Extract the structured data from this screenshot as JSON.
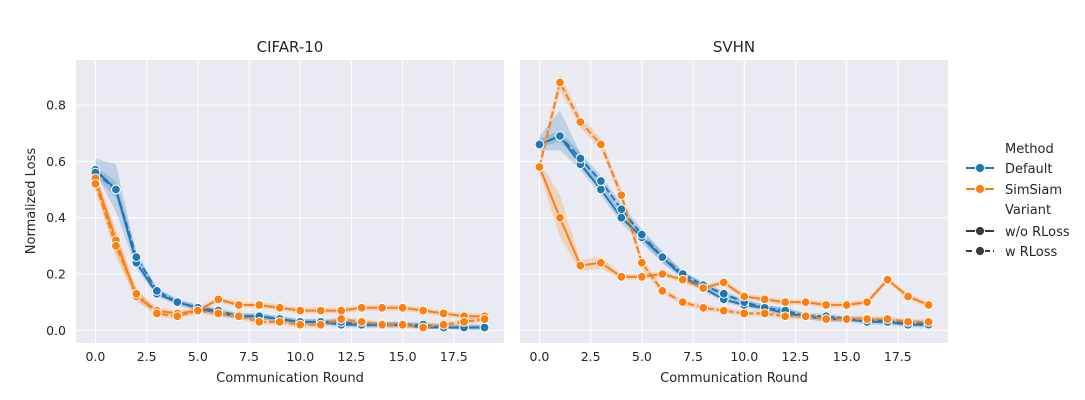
{
  "chart_data": [
    {
      "type": "line",
      "title": "CIFAR-10",
      "xlabel": "Communication Round",
      "ylabel": "Normalized Loss",
      "xlim": [
        -0.95,
        19.95
      ],
      "ylim": [
        -0.045,
        0.96
      ],
      "xticks": [
        "0.0",
        "2.5",
        "5.0",
        "7.5",
        "10.0",
        "12.5",
        "15.0",
        "17.5"
      ],
      "yticks": [
        "0.0",
        "0.2",
        "0.4",
        "0.6",
        "0.8"
      ],
      "grid": true,
      "series": [
        {
          "name": "Default",
          "variant": "w/o RLoss",
          "values": [
            0.57,
            0.5,
            0.24,
            0.13,
            0.1,
            0.08,
            0.06,
            0.05,
            0.05,
            0.04,
            0.03,
            0.03,
            0.02,
            0.02,
            0.02,
            0.02,
            0.01,
            0.01,
            0.01,
            0.01
          ],
          "band": [
            [
              0.56,
              0.61
            ],
            [
              0.42,
              0.59
            ],
            [
              0.22,
              0.27
            ],
            [
              0.12,
              0.15
            ],
            [
              0.09,
              0.11
            ],
            [
              0.07,
              0.09
            ],
            [
              0.05,
              0.07
            ],
            [
              0.04,
              0.06
            ],
            [
              0.04,
              0.06
            ],
            [
              0.03,
              0.05
            ],
            [
              0.02,
              0.04
            ],
            [
              0.02,
              0.04
            ],
            [
              0.01,
              0.03
            ],
            [
              0.01,
              0.03
            ],
            [
              0.01,
              0.03
            ],
            [
              0.01,
              0.03
            ],
            [
              0.005,
              0.02
            ],
            [
              0.005,
              0.02
            ],
            [
              0.0,
              0.02
            ],
            [
              0.0,
              0.02
            ]
          ]
        },
        {
          "name": "Default",
          "variant": "w RLoss",
          "values": [
            0.56,
            0.5,
            0.26,
            0.14,
            0.1,
            0.08,
            0.07,
            0.05,
            0.05,
            0.04,
            0.03,
            0.03,
            0.03,
            0.02,
            0.02,
            0.02,
            0.02,
            0.01,
            0.01,
            0.01
          ],
          "band": [
            [
              0.55,
              0.58
            ],
            [
              0.47,
              0.53
            ],
            [
              0.25,
              0.28
            ],
            [
              0.13,
              0.15
            ],
            [
              0.09,
              0.11
            ],
            [
              0.07,
              0.09
            ],
            [
              0.06,
              0.08
            ],
            [
              0.04,
              0.06
            ],
            [
              0.04,
              0.06
            ],
            [
              0.03,
              0.05
            ],
            [
              0.02,
              0.04
            ],
            [
              0.02,
              0.04
            ],
            [
              0.02,
              0.04
            ],
            [
              0.01,
              0.03
            ],
            [
              0.01,
              0.03
            ],
            [
              0.01,
              0.03
            ],
            [
              0.01,
              0.03
            ],
            [
              0.005,
              0.02
            ],
            [
              0.005,
              0.02
            ],
            [
              0.005,
              0.02
            ]
          ]
        },
        {
          "name": "SimSiam",
          "variant": "w/o RLoss",
          "values": [
            0.54,
            0.32,
            0.12,
            0.07,
            0.06,
            0.07,
            0.11,
            0.09,
            0.09,
            0.08,
            0.07,
            0.07,
            0.07,
            0.08,
            0.08,
            0.08,
            0.07,
            0.06,
            0.05,
            0.05
          ],
          "band": [
            [
              0.51,
              0.56
            ],
            [
              0.28,
              0.36
            ],
            [
              0.1,
              0.14
            ],
            [
              0.06,
              0.08
            ],
            [
              0.05,
              0.07
            ],
            [
              0.06,
              0.08
            ],
            [
              0.1,
              0.12
            ],
            [
              0.08,
              0.1
            ],
            [
              0.08,
              0.1
            ],
            [
              0.07,
              0.09
            ],
            [
              0.06,
              0.08
            ],
            [
              0.06,
              0.08
            ],
            [
              0.06,
              0.08
            ],
            [
              0.07,
              0.09
            ],
            [
              0.07,
              0.09
            ],
            [
              0.07,
              0.09
            ],
            [
              0.06,
              0.08
            ],
            [
              0.05,
              0.07
            ],
            [
              0.04,
              0.06
            ],
            [
              0.04,
              0.06
            ]
          ]
        },
        {
          "name": "SimSiam",
          "variant": "w RLoss",
          "values": [
            0.52,
            0.3,
            0.13,
            0.06,
            0.05,
            0.07,
            0.06,
            0.05,
            0.03,
            0.03,
            0.02,
            0.02,
            0.04,
            0.03,
            0.02,
            0.02,
            0.01,
            0.02,
            0.03,
            0.04
          ],
          "band": [
            [
              0.5,
              0.54
            ],
            [
              0.26,
              0.34
            ],
            [
              0.11,
              0.15
            ],
            [
              0.05,
              0.07
            ],
            [
              0.04,
              0.06
            ],
            [
              0.06,
              0.08
            ],
            [
              0.05,
              0.07
            ],
            [
              0.04,
              0.06
            ],
            [
              0.02,
              0.04
            ],
            [
              0.02,
              0.04
            ],
            [
              0.01,
              0.03
            ],
            [
              0.01,
              0.03
            ],
            [
              0.03,
              0.05
            ],
            [
              0.02,
              0.04
            ],
            [
              0.01,
              0.03
            ],
            [
              0.01,
              0.03
            ],
            [
              0.005,
              0.02
            ],
            [
              0.01,
              0.03
            ],
            [
              0.02,
              0.04
            ],
            [
              0.03,
              0.05
            ]
          ]
        }
      ]
    },
    {
      "type": "line",
      "title": "SVHN",
      "xlabel": "Communication Round",
      "ylabel": "",
      "xlim": [
        -0.95,
        19.95
      ],
      "ylim": [
        -0.045,
        0.96
      ],
      "xticks": [
        "0.0",
        "2.5",
        "5.0",
        "7.5",
        "10.0",
        "12.5",
        "15.0",
        "17.5"
      ],
      "yticks": [],
      "grid": true,
      "series": [
        {
          "name": "Default",
          "variant": "w/o RLoss",
          "values": [
            0.66,
            0.69,
            0.59,
            0.5,
            0.4,
            0.33,
            0.26,
            0.19,
            0.15,
            0.11,
            0.09,
            0.08,
            0.06,
            0.05,
            0.04,
            0.04,
            0.03,
            0.03,
            0.02,
            0.02
          ],
          "band": [
            [
              0.64,
              0.69
            ],
            [
              0.64,
              0.78
            ],
            [
              0.57,
              0.63
            ],
            [
              0.48,
              0.52
            ],
            [
              0.38,
              0.42
            ],
            [
              0.31,
              0.35
            ],
            [
              0.24,
              0.28
            ],
            [
              0.18,
              0.21
            ],
            [
              0.14,
              0.17
            ],
            [
              0.1,
              0.13
            ],
            [
              0.08,
              0.11
            ],
            [
              0.07,
              0.09
            ],
            [
              0.05,
              0.08
            ],
            [
              0.04,
              0.06
            ],
            [
              0.03,
              0.05
            ],
            [
              0.03,
              0.05
            ],
            [
              0.02,
              0.04
            ],
            [
              0.02,
              0.04
            ],
            [
              0.01,
              0.03
            ],
            [
              0.01,
              0.03
            ]
          ]
        },
        {
          "name": "Default",
          "variant": "w RLoss",
          "values": [
            0.66,
            0.69,
            0.61,
            0.53,
            0.43,
            0.34,
            0.26,
            0.2,
            0.16,
            0.13,
            0.1,
            0.08,
            0.07,
            0.05,
            0.05,
            0.04,
            0.04,
            0.03,
            0.03,
            0.02
          ],
          "band": [
            [
              0.65,
              0.68
            ],
            [
              0.67,
              0.71
            ],
            [
              0.59,
              0.63
            ],
            [
              0.51,
              0.55
            ],
            [
              0.41,
              0.45
            ],
            [
              0.32,
              0.36
            ],
            [
              0.24,
              0.28
            ],
            [
              0.19,
              0.21
            ],
            [
              0.15,
              0.17
            ],
            [
              0.12,
              0.14
            ],
            [
              0.09,
              0.11
            ],
            [
              0.07,
              0.09
            ],
            [
              0.06,
              0.08
            ],
            [
              0.04,
              0.06
            ],
            [
              0.04,
              0.06
            ],
            [
              0.03,
              0.05
            ],
            [
              0.03,
              0.05
            ],
            [
              0.02,
              0.04
            ],
            [
              0.02,
              0.04
            ],
            [
              0.01,
              0.03
            ]
          ]
        },
        {
          "name": "SimSiam",
          "variant": "w/o RLoss",
          "values": [
            0.58,
            0.4,
            0.23,
            0.24,
            0.19,
            0.19,
            0.2,
            0.18,
            0.15,
            0.17,
            0.12,
            0.11,
            0.1,
            0.1,
            0.09,
            0.09,
            0.1,
            0.18,
            0.12,
            0.09
          ],
          "band": [
            [
              0.56,
              0.6
            ],
            [
              0.33,
              0.48
            ],
            [
              0.21,
              0.25
            ],
            [
              0.22,
              0.26
            ],
            [
              0.18,
              0.2
            ],
            [
              0.18,
              0.2
            ],
            [
              0.19,
              0.21
            ],
            [
              0.17,
              0.19
            ],
            [
              0.14,
              0.16
            ],
            [
              0.16,
              0.18
            ],
            [
              0.11,
              0.13
            ],
            [
              0.1,
              0.12
            ],
            [
              0.09,
              0.11
            ],
            [
              0.09,
              0.11
            ],
            [
              0.08,
              0.1
            ],
            [
              0.08,
              0.1
            ],
            [
              0.09,
              0.11
            ],
            [
              0.17,
              0.19
            ],
            [
              0.11,
              0.13
            ],
            [
              0.08,
              0.1
            ]
          ]
        },
        {
          "name": "SimSiam",
          "variant": "w RLoss",
          "values": [
            0.58,
            0.88,
            0.74,
            0.66,
            0.48,
            0.24,
            0.14,
            0.1,
            0.08,
            0.07,
            0.06,
            0.06,
            0.05,
            0.05,
            0.04,
            0.04,
            0.04,
            0.04,
            0.03,
            0.03
          ],
          "band": [
            [
              0.56,
              0.6
            ],
            [
              0.85,
              0.91
            ],
            [
              0.72,
              0.76
            ],
            [
              0.64,
              0.68
            ],
            [
              0.46,
              0.5
            ],
            [
              0.22,
              0.26
            ],
            [
              0.13,
              0.15
            ],
            [
              0.09,
              0.11
            ],
            [
              0.07,
              0.09
            ],
            [
              0.06,
              0.08
            ],
            [
              0.05,
              0.07
            ],
            [
              0.05,
              0.07
            ],
            [
              0.04,
              0.06
            ],
            [
              0.04,
              0.06
            ],
            [
              0.03,
              0.05
            ],
            [
              0.03,
              0.05
            ],
            [
              0.03,
              0.05
            ],
            [
              0.03,
              0.05
            ],
            [
              0.02,
              0.04
            ],
            [
              0.02,
              0.04
            ]
          ]
        }
      ]
    }
  ],
  "legend": {
    "placement": "right",
    "method_title": "Method",
    "methods": [
      {
        "name": "Default",
        "color": "#1f77b4"
      },
      {
        "name": "SimSiam",
        "color": "#ff7f0e"
      }
    ],
    "variant_title": "Variant",
    "variants": [
      {
        "name": "w/o RLoss",
        "style": "solid"
      },
      {
        "name": "w RLoss",
        "style": "dashed"
      }
    ]
  },
  "colors": {
    "Default": "#1f77b4",
    "SimSiam": "#ff7f0e",
    "plot_background": "#eaeaf2",
    "grid": "#ffffff"
  }
}
